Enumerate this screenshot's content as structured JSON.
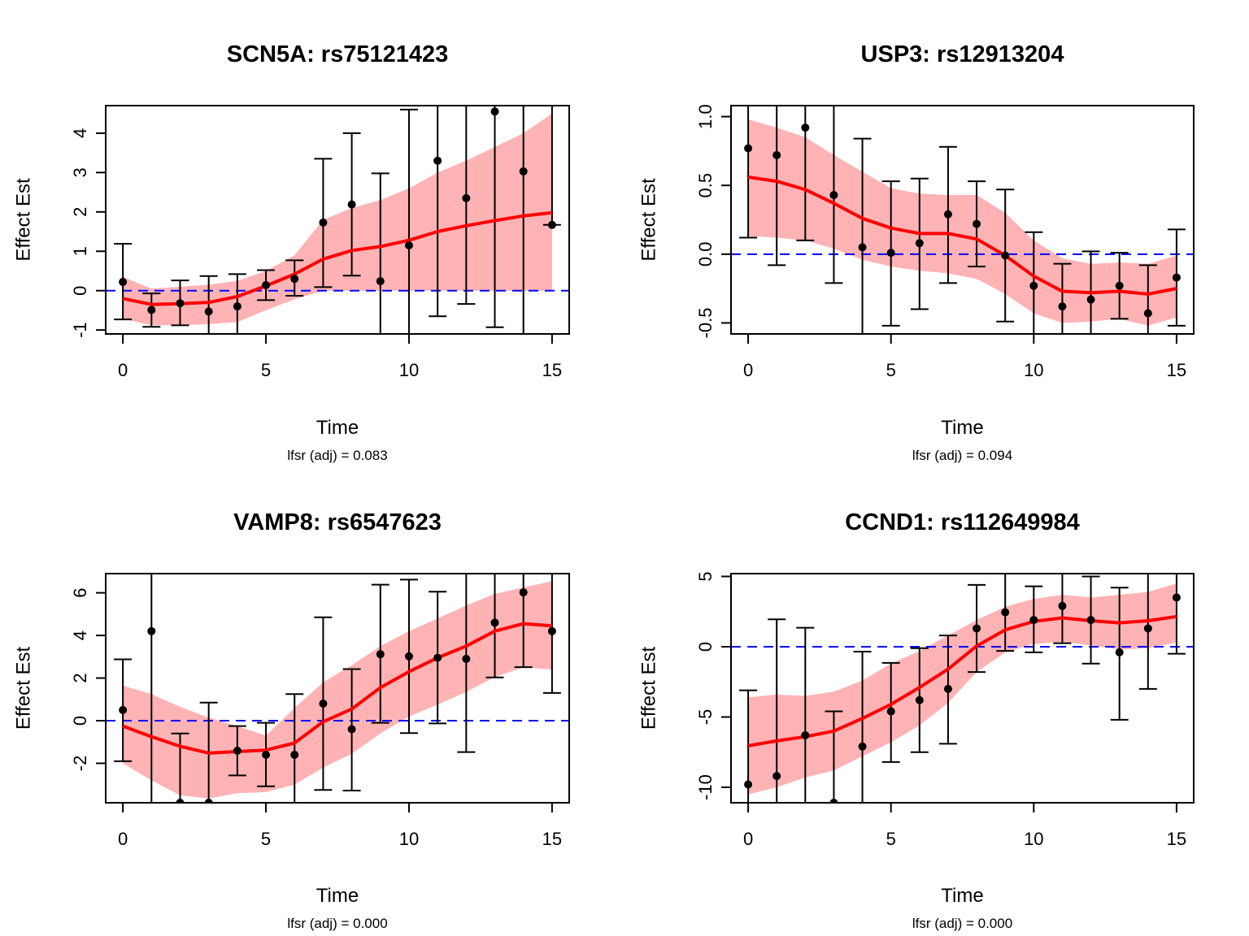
{
  "chart_data": [
    {
      "type": "line",
      "title": "SCN5A: rs75121423",
      "xlabel": "Time",
      "ylabel": "Effect Est",
      "subtitle": "lfsr (adj) = 0.083",
      "xlim": [
        -0.6,
        15.6
      ],
      "ylim": [
        -1.1,
        4.7
      ],
      "xticks": [
        0,
        5,
        10,
        15
      ],
      "yticks": [
        -1,
        0,
        1,
        2,
        3,
        4
      ],
      "ytick_labels": [
        "-1",
        "0",
        "1",
        "2",
        "3",
        "4"
      ],
      "reference_line": 0,
      "points": {
        "x": [
          0,
          1,
          2,
          3,
          4,
          5,
          6,
          7,
          8,
          9,
          10,
          11,
          12,
          13,
          14,
          15
        ],
        "y": [
          0.22,
          -0.49,
          -0.32,
          -0.53,
          -0.4,
          0.14,
          0.3,
          1.73,
          2.19,
          0.24,
          1.15,
          3.3,
          2.35,
          4.55,
          3.03,
          1.67
        ],
        "lower": [
          -0.73,
          -0.92,
          -0.88,
          -1.1,
          -1.1,
          -0.24,
          -0.13,
          0.09,
          0.38,
          -1.1,
          -1.1,
          -0.65,
          -0.34,
          -0.93,
          -1.1,
          1.67
        ],
        "upper": [
          1.19,
          -0.07,
          0.26,
          0.37,
          0.42,
          0.52,
          0.77,
          3.35,
          4.0,
          2.98,
          4.6,
          4.7,
          4.7,
          4.7,
          4.7,
          4.7
        ]
      },
      "fit": {
        "x": [
          0,
          1,
          2,
          3,
          4,
          5,
          6,
          7,
          8,
          9,
          10,
          11,
          12,
          13,
          14,
          15
        ],
        "y": [
          -0.2,
          -0.35,
          -0.33,
          -0.3,
          -0.15,
          0.12,
          0.42,
          0.8,
          1.02,
          1.12,
          1.28,
          1.5,
          1.65,
          1.78,
          1.9,
          1.98
        ],
        "lower": [
          -0.72,
          -0.88,
          -0.88,
          -0.85,
          -0.8,
          -0.5,
          -0.22,
          0.0,
          0.0,
          0.0,
          0.0,
          0.0,
          0.0,
          0.0,
          0.0,
          0.0
        ],
        "upper": [
          0.35,
          0.05,
          0.1,
          0.15,
          0.25,
          0.5,
          0.9,
          1.8,
          2.1,
          2.3,
          2.6,
          3.0,
          3.3,
          3.65,
          4.0,
          4.5
        ]
      },
      "colors": {
        "points": "#000000",
        "fit": "#ff0000",
        "band": "#ffb3b5",
        "ref": "#0000ff"
      }
    },
    {
      "type": "line",
      "title": "USP3: rs12913204",
      "xlabel": "Time",
      "ylabel": "Effect Est",
      "subtitle": "lfsr (adj) = 0.094",
      "xlim": [
        -0.6,
        15.6
      ],
      "ylim": [
        -0.58,
        1.08
      ],
      "xticks": [
        0,
        5,
        10,
        15
      ],
      "yticks": [
        -0.5,
        0.0,
        0.5,
        1.0
      ],
      "ytick_labels": [
        "-0.5",
        "0.0",
        "0.5",
        "1.0"
      ],
      "reference_line": 0,
      "points": {
        "x": [
          0,
          1,
          2,
          3,
          4,
          5,
          6,
          7,
          8,
          9,
          10,
          11,
          12,
          13,
          14,
          15
        ],
        "y": [
          0.77,
          0.72,
          0.92,
          0.43,
          0.05,
          0.01,
          0.08,
          0.29,
          0.22,
          -0.01,
          -0.23,
          -0.38,
          -0.33,
          -0.23,
          -0.43,
          -0.17
        ],
        "lower": [
          0.12,
          -0.08,
          0.1,
          -0.21,
          -0.58,
          -0.52,
          -0.4,
          -0.21,
          -0.09,
          -0.49,
          -0.58,
          -0.58,
          -0.58,
          -0.47,
          -0.58,
          -0.52
        ],
        "upper": [
          1.08,
          1.08,
          1.08,
          1.08,
          0.84,
          0.53,
          0.55,
          0.78,
          0.53,
          0.47,
          0.16,
          -0.07,
          0.02,
          0.01,
          -0.08,
          0.18
        ]
      },
      "fit": {
        "x": [
          0,
          1,
          2,
          3,
          4,
          5,
          6,
          7,
          8,
          9,
          10,
          11,
          12,
          13,
          14,
          15
        ],
        "y": [
          0.56,
          0.53,
          0.47,
          0.37,
          0.26,
          0.19,
          0.15,
          0.15,
          0.11,
          -0.01,
          -0.16,
          -0.27,
          -0.28,
          -0.27,
          -0.29,
          -0.25
        ],
        "lower": [
          0.13,
          0.12,
          0.1,
          0.04,
          -0.04,
          -0.09,
          -0.12,
          -0.14,
          -0.18,
          -0.29,
          -0.43,
          -0.5,
          -0.49,
          -0.47,
          -0.52,
          -0.46
        ],
        "upper": [
          0.98,
          0.92,
          0.85,
          0.72,
          0.6,
          0.48,
          0.44,
          0.43,
          0.43,
          0.3,
          0.1,
          -0.03,
          -0.07,
          -0.06,
          -0.07,
          -0.01
        ]
      },
      "colors": {
        "points": "#000000",
        "fit": "#ff0000",
        "band": "#ffb3b5",
        "ref": "#0000ff"
      }
    },
    {
      "type": "line",
      "title": "VAMP8: rs6547623",
      "xlabel": "Time",
      "ylabel": "Effect Est",
      "subtitle": "lfsr (adj) = 0.000",
      "xlim": [
        -0.6,
        15.6
      ],
      "ylim": [
        -3.85,
        6.9
      ],
      "xticks": [
        0,
        5,
        10,
        15
      ],
      "yticks": [
        -2,
        0,
        2,
        4,
        6
      ],
      "ytick_labels": [
        "-2",
        "0",
        "2",
        "4",
        "6"
      ],
      "reference_line": 0,
      "points": {
        "x": [
          0,
          1,
          2,
          3,
          4,
          5,
          6,
          7,
          8,
          9,
          10,
          11,
          12,
          13,
          14,
          15
        ],
        "y": [
          0.5,
          4.2,
          -3.85,
          -3.85,
          -1.41,
          -1.6,
          -1.6,
          0.8,
          -0.4,
          3.12,
          3.02,
          2.95,
          2.9,
          4.6,
          6.02,
          4.2
        ],
        "lower": [
          -1.9,
          -3.85,
          -3.85,
          -3.85,
          -2.57,
          -3.08,
          -3.85,
          -3.25,
          -3.28,
          -0.1,
          -0.58,
          -0.13,
          -1.47,
          2.03,
          2.51,
          1.3
        ],
        "upper": [
          2.88,
          6.9,
          -0.6,
          0.85,
          -0.25,
          -0.1,
          1.25,
          4.85,
          2.42,
          6.38,
          6.62,
          6.05,
          6.9,
          6.9,
          6.9,
          6.9
        ]
      },
      "fit": {
        "x": [
          0,
          1,
          2,
          3,
          4,
          5,
          6,
          7,
          8,
          9,
          10,
          11,
          12,
          13,
          14,
          15
        ],
        "y": [
          -0.25,
          -0.75,
          -1.2,
          -1.52,
          -1.45,
          -1.38,
          -1.05,
          -0.05,
          0.55,
          1.55,
          2.3,
          2.95,
          3.5,
          4.2,
          4.55,
          4.45
        ],
        "lower": [
          -2.0,
          -2.8,
          -3.5,
          -3.65,
          -3.4,
          -3.35,
          -3.0,
          -2.2,
          -1.55,
          -0.6,
          0.2,
          0.75,
          1.35,
          2.05,
          2.5,
          2.4
        ],
        "upper": [
          1.65,
          1.25,
          0.65,
          0.15,
          -0.25,
          -0.7,
          0.6,
          1.8,
          2.6,
          3.5,
          4.2,
          4.8,
          5.4,
          5.95,
          6.25,
          6.55
        ]
      },
      "colors": {
        "points": "#000000",
        "fit": "#ff0000",
        "band": "#ffb3b5",
        "ref": "#0000ff"
      }
    },
    {
      "type": "line",
      "title": "CCND1: rs112649984",
      "xlabel": "Time",
      "ylabel": "Effect Est",
      "subtitle": "lfsr (adj) = 0.000",
      "xlim": [
        -0.6,
        15.6
      ],
      "ylim": [
        -11.1,
        5.2
      ],
      "xticks": [
        0,
        5,
        10,
        15
      ],
      "yticks": [
        -10,
        -5,
        0,
        5
      ],
      "ytick_labels": [
        "-10",
        "-5",
        "0",
        "5"
      ],
      "reference_line": 0,
      "points": {
        "x": [
          0,
          1,
          2,
          3,
          4,
          5,
          6,
          7,
          8,
          9,
          10,
          11,
          12,
          13,
          14,
          15
        ],
        "y": [
          -9.8,
          -9.2,
          -6.3,
          -11.1,
          -7.1,
          -4.6,
          -3.8,
          -3.0,
          1.3,
          2.45,
          1.9,
          2.9,
          1.9,
          -0.4,
          1.3,
          3.5
        ],
        "lower": [
          -11.1,
          -11.1,
          -11.1,
          -11.1,
          -11.1,
          -8.2,
          -7.5,
          -6.9,
          -1.8,
          -0.3,
          -0.4,
          0.25,
          -1.2,
          -5.2,
          -3.0,
          -0.5
        ],
        "upper": [
          -3.1,
          1.95,
          1.35,
          -4.6,
          -0.35,
          -1.15,
          -0.1,
          0.8,
          4.4,
          5.2,
          4.3,
          5.2,
          5.0,
          4.2,
          5.2,
          5.2
        ]
      },
      "fit": {
        "x": [
          0,
          1,
          2,
          3,
          4,
          5,
          6,
          7,
          8,
          9,
          10,
          11,
          12,
          13,
          14,
          15
        ],
        "y": [
          -7.05,
          -6.7,
          -6.4,
          -6.0,
          -5.1,
          -4.1,
          -2.9,
          -1.6,
          0.05,
          1.2,
          1.8,
          2.05,
          1.85,
          1.7,
          1.85,
          2.15
        ],
        "lower": [
          -10.5,
          -10.0,
          -9.3,
          -8.8,
          -7.8,
          -6.8,
          -5.6,
          -4.0,
          -1.8,
          -0.4,
          0.2,
          0.35,
          0.1,
          -0.2,
          -0.1,
          0.3
        ],
        "upper": [
          -3.6,
          -3.4,
          -3.5,
          -3.2,
          -2.4,
          -1.2,
          -0.3,
          0.8,
          1.9,
          2.85,
          3.4,
          3.7,
          3.5,
          3.7,
          3.9,
          4.5
        ]
      },
      "colors": {
        "points": "#000000",
        "fit": "#ff0000",
        "band": "#ffb3b5",
        "ref": "#0000ff"
      }
    }
  ]
}
